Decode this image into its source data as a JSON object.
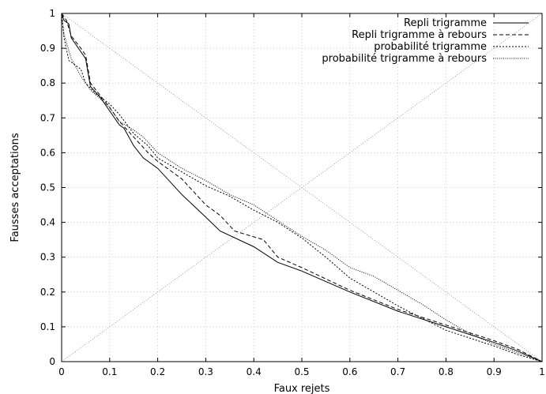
{
  "chart_data": {
    "type": "line",
    "title": "",
    "xlabel": "Faux rejets",
    "ylabel": "Fausses acceptations",
    "xlim": [
      0,
      1
    ],
    "ylim": [
      0,
      1
    ],
    "grid": true,
    "legend_position": "top-right",
    "x_ticks": [
      "0",
      "0.1",
      "0.2",
      "0.3",
      "0.4",
      "0.5",
      "0.6",
      "0.7",
      "0.8",
      "0.9",
      "1"
    ],
    "y_ticks": [
      "0",
      "0.1",
      "0.2",
      "0.3",
      "0.4",
      "0.5",
      "0.6",
      "0.7",
      "0.8",
      "0.9",
      "1"
    ],
    "series": [
      {
        "name": "Repli trigramme",
        "style": "solid",
        "points": [
          [
            0,
            1
          ],
          [
            0.005,
            0.98
          ],
          [
            0.015,
            0.97
          ],
          [
            0.02,
            0.93
          ],
          [
            0.04,
            0.89
          ],
          [
            0.05,
            0.87
          ],
          [
            0.055,
            0.83
          ],
          [
            0.06,
            0.79
          ],
          [
            0.08,
            0.76
          ],
          [
            0.1,
            0.72
          ],
          [
            0.12,
            0.68
          ],
          [
            0.13,
            0.67
          ],
          [
            0.15,
            0.62
          ],
          [
            0.17,
            0.585
          ],
          [
            0.2,
            0.555
          ],
          [
            0.25,
            0.48
          ],
          [
            0.3,
            0.415
          ],
          [
            0.33,
            0.375
          ],
          [
            0.4,
            0.33
          ],
          [
            0.45,
            0.285
          ],
          [
            0.5,
            0.26
          ],
          [
            0.6,
            0.2
          ],
          [
            0.7,
            0.145
          ],
          [
            0.8,
            0.1
          ],
          [
            0.9,
            0.055
          ],
          [
            0.95,
            0.03
          ],
          [
            1,
            0
          ]
        ]
      },
      {
        "name": "Repli trigramme à rebours",
        "style": "dashed",
        "points": [
          [
            0,
            1
          ],
          [
            0.01,
            0.98
          ],
          [
            0.02,
            0.935
          ],
          [
            0.04,
            0.9
          ],
          [
            0.05,
            0.88
          ],
          [
            0.06,
            0.8
          ],
          [
            0.08,
            0.765
          ],
          [
            0.1,
            0.73
          ],
          [
            0.12,
            0.69
          ],
          [
            0.15,
            0.645
          ],
          [
            0.18,
            0.6
          ],
          [
            0.2,
            0.575
          ],
          [
            0.25,
            0.525
          ],
          [
            0.3,
            0.45
          ],
          [
            0.33,
            0.42
          ],
          [
            0.36,
            0.375
          ],
          [
            0.42,
            0.35
          ],
          [
            0.45,
            0.3
          ],
          [
            0.5,
            0.27
          ],
          [
            0.6,
            0.205
          ],
          [
            0.7,
            0.15
          ],
          [
            0.8,
            0.105
          ],
          [
            0.9,
            0.06
          ],
          [
            0.95,
            0.035
          ],
          [
            1,
            0
          ]
        ]
      },
      {
        "name": "probabilité trigramme",
        "style": "dotted",
        "points": [
          [
            0,
            1
          ],
          [
            0.005,
            0.93
          ],
          [
            0.015,
            0.865
          ],
          [
            0.04,
            0.84
          ],
          [
            0.05,
            0.8
          ],
          [
            0.07,
            0.77
          ],
          [
            0.1,
            0.74
          ],
          [
            0.12,
            0.71
          ],
          [
            0.15,
            0.655
          ],
          [
            0.18,
            0.62
          ],
          [
            0.2,
            0.585
          ],
          [
            0.25,
            0.545
          ],
          [
            0.3,
            0.505
          ],
          [
            0.35,
            0.475
          ],
          [
            0.4,
            0.435
          ],
          [
            0.45,
            0.4
          ],
          [
            0.5,
            0.355
          ],
          [
            0.55,
            0.3
          ],
          [
            0.6,
            0.24
          ],
          [
            0.65,
            0.2
          ],
          [
            0.7,
            0.16
          ],
          [
            0.75,
            0.125
          ],
          [
            0.8,
            0.09
          ],
          [
            0.9,
            0.045
          ],
          [
            0.95,
            0.02
          ],
          [
            1,
            0
          ]
        ]
      },
      {
        "name": "probabilité trigramme à rebours",
        "style": "fine-dotted",
        "points": [
          [
            0,
            1
          ],
          [
            0.005,
            0.94
          ],
          [
            0.02,
            0.87
          ],
          [
            0.04,
            0.82
          ],
          [
            0.06,
            0.78
          ],
          [
            0.08,
            0.755
          ],
          [
            0.1,
            0.73
          ],
          [
            0.12,
            0.69
          ],
          [
            0.15,
            0.665
          ],
          [
            0.17,
            0.645
          ],
          [
            0.2,
            0.6
          ],
          [
            0.25,
            0.555
          ],
          [
            0.3,
            0.52
          ],
          [
            0.35,
            0.48
          ],
          [
            0.4,
            0.45
          ],
          [
            0.45,
            0.405
          ],
          [
            0.5,
            0.36
          ],
          [
            0.55,
            0.32
          ],
          [
            0.6,
            0.27
          ],
          [
            0.65,
            0.245
          ],
          [
            0.7,
            0.205
          ],
          [
            0.75,
            0.165
          ],
          [
            0.8,
            0.12
          ],
          [
            0.85,
            0.08
          ],
          [
            0.9,
            0.05
          ],
          [
            0.95,
            0.025
          ],
          [
            1,
            0
          ]
        ]
      }
    ],
    "reference_lines": [
      {
        "points": [
          [
            0,
            1
          ],
          [
            1,
            0
          ]
        ]
      },
      {
        "points": [
          [
            0,
            0
          ],
          [
            1,
            1
          ]
        ]
      }
    ]
  }
}
